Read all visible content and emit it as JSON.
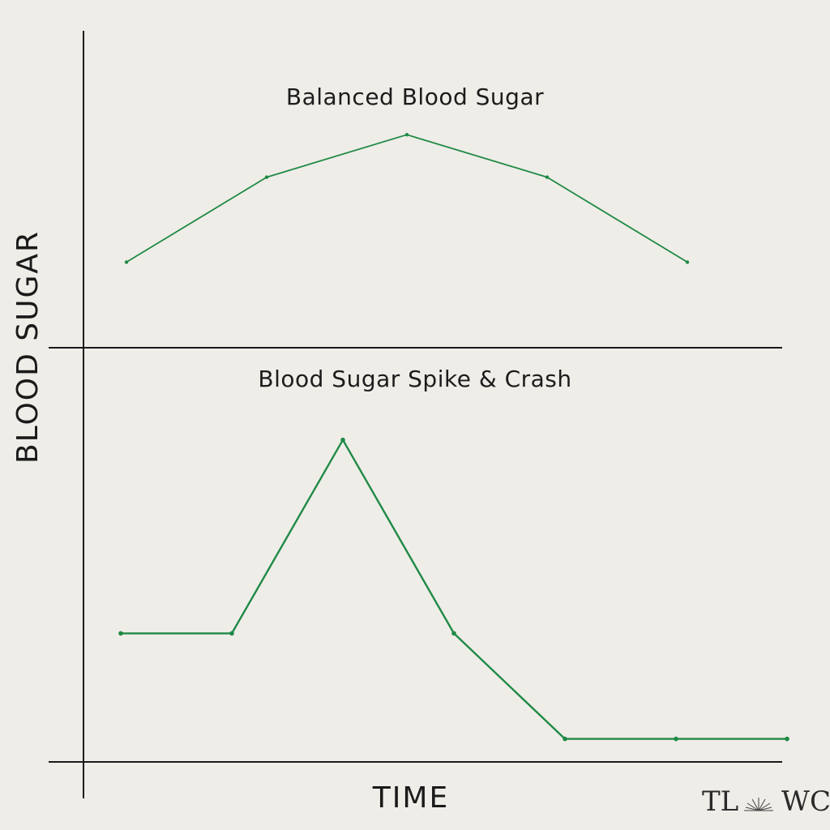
{
  "chart_data": {
    "type": "line",
    "xlabel": "TIME",
    "ylabel": "BLOOD SUGAR",
    "panels": [
      {
        "title": "Balanced Blood Sugar",
        "series": [
          {
            "values": [
              0.3,
              0.7,
              0.9,
              0.7,
              0.3
            ]
          }
        ],
        "ylim": [
          0,
          1
        ]
      },
      {
        "title": "Blood Sugar Spike & Crash",
        "series": [
          {
            "values": [
              0.4,
              0.4,
              0.95,
              0.4,
              0.1,
              0.1,
              0.1
            ]
          }
        ],
        "ylim": [
          0,
          1
        ]
      }
    ]
  },
  "colors": {
    "background": "#efede8",
    "line": "#1f8a45",
    "axis": "#1a1a1a"
  },
  "logo": {
    "left": "TL",
    "right": "WC"
  }
}
